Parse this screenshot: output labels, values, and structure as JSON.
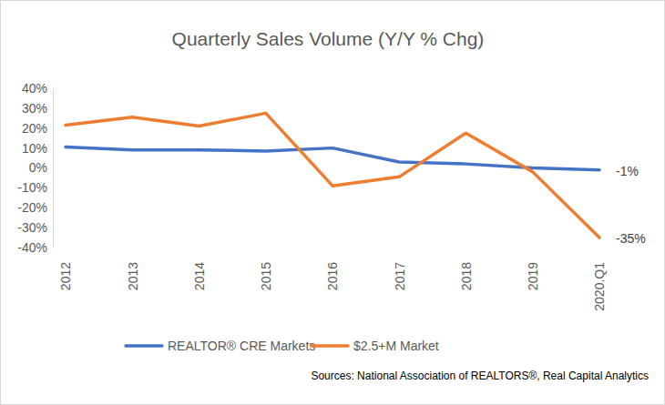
{
  "chart_data": {
    "type": "line",
    "title": "Quarterly Sales Volume (Y/Y % Chg)",
    "categories": [
      "2012",
      "2013",
      "2014",
      "2015",
      "2016",
      "2017",
      "2018",
      "2019",
      "2020.Q1"
    ],
    "series": [
      {
        "name": "REALTOR® CRE Markets",
        "color": "#4472c4",
        "values": [
          10.5,
          9,
          9,
          8.5,
          10,
          3,
          2,
          0,
          -1
        ]
      },
      {
        "name": "$2.5+M Market",
        "color": "#ed7d31",
        "values": [
          21.5,
          25.5,
          21,
          27.5,
          -9,
          -4.5,
          17.5,
          -2,
          -35
        ]
      }
    ],
    "ylim": [
      -40,
      40
    ],
    "yticks": [
      {
        "value": -40,
        "label": "-40%"
      },
      {
        "value": -30,
        "label": "-30%"
      },
      {
        "value": -20,
        "label": "-20%"
      },
      {
        "value": -10,
        "label": "-10%"
      },
      {
        "value": 0,
        "label": "0%"
      },
      {
        "value": 10,
        "label": "10%"
      },
      {
        "value": 20,
        "label": "20%"
      },
      {
        "value": 30,
        "label": "30%"
      },
      {
        "value": 40,
        "label": "40%"
      }
    ],
    "grid": false,
    "legend": "bottom",
    "annotations": [
      {
        "text": "-1%",
        "value": -1
      },
      {
        "text": "-35%",
        "value": -35
      }
    ],
    "source": "Sources: National Association of REALTORS®, Real Capital Analytics"
  }
}
